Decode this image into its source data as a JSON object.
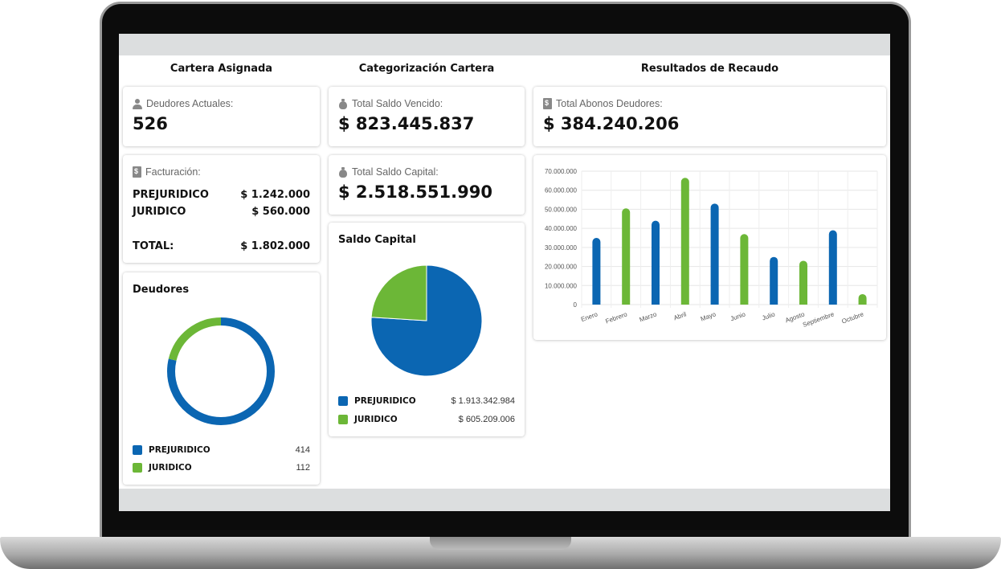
{
  "colors": {
    "prejuridico": "#0b66b2",
    "juridico": "#6cb737"
  },
  "columns": {
    "cartera_asignada": "Cartera Asignada",
    "categorizacion": "Categorización Cartera",
    "resultados": "Resultados de Recaudo"
  },
  "deudores_actuales": {
    "icon": "user-icon",
    "label": "Deudores Actuales:",
    "value": "526"
  },
  "facturacion": {
    "icon": "invoice-icon",
    "label": "Facturación:",
    "rows": [
      {
        "name": "PREJURIDICO",
        "value": "$ 1.242.000"
      },
      {
        "name": "JURIDICO",
        "value": "$ 560.000"
      }
    ],
    "total_label": "TOTAL:",
    "total_value": "$ 1.802.000"
  },
  "deudores": {
    "title": "Deudores",
    "legend": [
      {
        "name": "PREJURIDICO",
        "value": "414"
      },
      {
        "name": "JURIDICO",
        "value": "112"
      }
    ]
  },
  "saldo_vencido": {
    "icon": "money-bag-icon",
    "label": "Total Saldo Vencido:",
    "value": "$ 823.445.837"
  },
  "saldo_capital_total": {
    "icon": "money-bag-icon",
    "label": "Total Saldo Capital:",
    "value": "$ 2.518.551.990"
  },
  "saldo_capital": {
    "title": "Saldo Capital",
    "legend": [
      {
        "name": "PREJURIDICO",
        "value": "$ 1.913.342.984"
      },
      {
        "name": "JURIDICO",
        "value": "$ 605.209.006"
      }
    ]
  },
  "abonos": {
    "icon": "invoice-icon",
    "label": "Total Abonos Deudores:",
    "value": "$ 384.240.206"
  },
  "chart_data": [
    {
      "type": "pie",
      "style": "donut",
      "labels": [
        "PREJURIDICO",
        "JURIDICO"
      ],
      "values": [
        414,
        112
      ]
    },
    {
      "type": "pie",
      "labels": [
        "PREJURIDICO",
        "JURIDICO"
      ],
      "values": [
        1913342984,
        605209006
      ]
    },
    {
      "type": "bar",
      "categories": [
        "Enero",
        "Febrero",
        "Marzo",
        "Abril",
        "Mayo",
        "Junio",
        "Julio",
        "Agosto",
        "Septiembre",
        "Octubre"
      ],
      "values": [
        35000000,
        50500000,
        44000000,
        66500000,
        53000000,
        37000000,
        25000000,
        23000000,
        39000000,
        5500000
      ],
      "bar_colors": [
        "#0b66b2",
        "#6cb737",
        "#0b66b2",
        "#6cb737",
        "#0b66b2",
        "#6cb737",
        "#0b66b2",
        "#6cb737",
        "#0b66b2",
        "#6cb737"
      ],
      "ylim": [
        0,
        70000000
      ],
      "yticks": [
        "0",
        "10.000.000",
        "20.000.000",
        "30.000.000",
        "40.000.000",
        "50.000.000",
        "60.000.000",
        "70.000.000"
      ],
      "grid": true
    }
  ]
}
